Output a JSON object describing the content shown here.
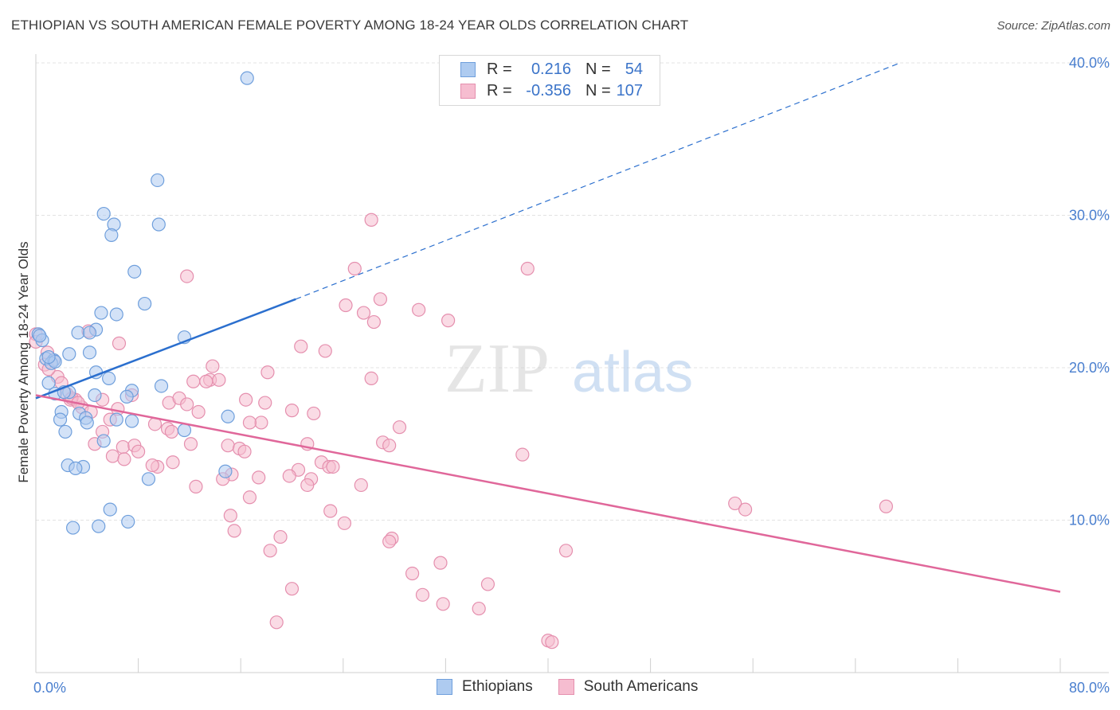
{
  "title": "ETHIOPIAN VS SOUTH AMERICAN FEMALE POVERTY AMONG 18-24 YEAR OLDS CORRELATION CHART",
  "source": "Source: ZipAtlas.com",
  "watermark": {
    "zip": "ZIP",
    "atlas": "atlas"
  },
  "legend_box": [
    {
      "r_label": "R =",
      "r_value": "0.216",
      "n_label": "N =",
      "n_value": "54"
    },
    {
      "r_label": "R =",
      "r_value": "-0.356",
      "n_label": "N =",
      "n_value": "107"
    }
  ],
  "bottom_legend": [
    "Ethiopians",
    "South Americans"
  ],
  "colors": {
    "blue_fill": "#aecbf0",
    "blue_stroke": "#6f9fdc",
    "blue_line": "#2b6fce",
    "pink_fill": "#f6bdd0",
    "pink_stroke": "#e58fae",
    "pink_line": "#e0679a",
    "axis_label": "#4a7fcf",
    "grid": "#e3e3e3"
  },
  "chart_data": {
    "type": "scatter",
    "title": "ETHIOPIAN VS SOUTH AMERICAN FEMALE POVERTY AMONG 18-24 YEAR OLDS CORRELATION CHART",
    "xlabel": "",
    "ylabel": "Female Poverty Among 18-24 Year Olds",
    "xlim": [
      0,
      80
    ],
    "ylim": [
      0,
      40
    ],
    "x_tick_labels": [
      "0.0%",
      "80.0%"
    ],
    "y_ticks": [
      10,
      20,
      30,
      40
    ],
    "y_tick_labels": [
      "10.0%",
      "20.0%",
      "30.0%",
      "40.0%"
    ],
    "grid": true,
    "legend": "top-center",
    "series": [
      {
        "name": "Ethiopians",
        "r": 0.216,
        "n": 54,
        "trend": {
          "x": [
            0,
            20.3
          ],
          "y": [
            18.0,
            24.5
          ],
          "dashed_to": [
            67.5,
            40.0
          ]
        },
        "points": [
          [
            16.5,
            39.0
          ],
          [
            9.5,
            32.3
          ],
          [
            5.3,
            30.1
          ],
          [
            6.1,
            29.4
          ],
          [
            9.6,
            29.4
          ],
          [
            5.9,
            28.7
          ],
          [
            7.7,
            26.3
          ],
          [
            8.5,
            24.2
          ],
          [
            5.1,
            23.6
          ],
          [
            6.3,
            23.5
          ],
          [
            4.7,
            22.5
          ],
          [
            3.3,
            22.3
          ],
          [
            4.2,
            22.3
          ],
          [
            11.6,
            22.0
          ],
          [
            0.2,
            22.2
          ],
          [
            0.5,
            21.8
          ],
          [
            4.2,
            21.0
          ],
          [
            2.6,
            20.9
          ],
          [
            0.8,
            20.6
          ],
          [
            1.4,
            20.5
          ],
          [
            1.2,
            20.3
          ],
          [
            1.5,
            20.4
          ],
          [
            4.7,
            19.7
          ],
          [
            5.7,
            19.3
          ],
          [
            1.0,
            19.0
          ],
          [
            9.8,
            18.8
          ],
          [
            7.5,
            18.5
          ],
          [
            2.6,
            18.4
          ],
          [
            1.5,
            18.3
          ],
          [
            4.6,
            18.2
          ],
          [
            7.1,
            18.1
          ],
          [
            2.0,
            17.1
          ],
          [
            3.4,
            17.0
          ],
          [
            3.9,
            16.7
          ],
          [
            1.9,
            16.6
          ],
          [
            6.3,
            16.6
          ],
          [
            7.5,
            16.5
          ],
          [
            4.0,
            16.4
          ],
          [
            15.0,
            16.8
          ],
          [
            11.6,
            15.9
          ],
          [
            2.3,
            15.8
          ],
          [
            5.3,
            15.2
          ],
          [
            2.5,
            13.6
          ],
          [
            3.7,
            13.5
          ],
          [
            3.1,
            13.4
          ],
          [
            14.8,
            13.2
          ],
          [
            8.8,
            12.7
          ],
          [
            5.8,
            10.7
          ],
          [
            7.2,
            9.9
          ],
          [
            2.9,
            9.5
          ],
          [
            4.9,
            9.6
          ],
          [
            0.3,
            22.1
          ],
          [
            1.0,
            20.7
          ],
          [
            2.2,
            18.4
          ]
        ]
      },
      {
        "name": "South Americans",
        "r": -0.356,
        "n": 107,
        "trend": {
          "x": [
            0,
            80
          ],
          "y": [
            18.2,
            5.3
          ]
        },
        "points": [
          [
            26.2,
            29.7
          ],
          [
            24.9,
            26.5
          ],
          [
            38.4,
            26.5
          ],
          [
            11.8,
            26.0
          ],
          [
            26.9,
            24.5
          ],
          [
            24.2,
            24.1
          ],
          [
            29.9,
            23.8
          ],
          [
            25.6,
            23.6
          ],
          [
            26.4,
            23.0
          ],
          [
            32.2,
            23.1
          ],
          [
            4.1,
            22.4
          ],
          [
            6.5,
            21.6
          ],
          [
            20.7,
            21.4
          ],
          [
            22.6,
            21.1
          ],
          [
            13.8,
            20.1
          ],
          [
            18.1,
            19.7
          ],
          [
            26.2,
            19.3
          ],
          [
            0.0,
            22.2
          ],
          [
            0.0,
            21.7
          ],
          [
            0.9,
            21.0
          ],
          [
            1.4,
            20.5
          ],
          [
            0.7,
            20.2
          ],
          [
            12.3,
            19.1
          ],
          [
            13.6,
            19.2
          ],
          [
            14.3,
            19.2
          ],
          [
            1.7,
            19.4
          ],
          [
            2.0,
            19.0
          ],
          [
            2.4,
            18.3
          ],
          [
            3.1,
            17.9
          ],
          [
            2.7,
            17.9
          ],
          [
            3.6,
            17.4
          ],
          [
            4.3,
            17.1
          ],
          [
            5.2,
            17.9
          ],
          [
            7.5,
            18.2
          ],
          [
            9.3,
            16.3
          ],
          [
            10.4,
            17.7
          ],
          [
            11.2,
            18.0
          ],
          [
            11.8,
            17.6
          ],
          [
            12.7,
            17.1
          ],
          [
            16.4,
            17.9
          ],
          [
            17.9,
            17.7
          ],
          [
            20.0,
            17.2
          ],
          [
            21.7,
            17.0
          ],
          [
            17.6,
            16.4
          ],
          [
            16.7,
            16.4
          ],
          [
            28.4,
            16.1
          ],
          [
            10.3,
            16.0
          ],
          [
            10.6,
            15.8
          ],
          [
            5.2,
            15.8
          ],
          [
            5.8,
            16.6
          ],
          [
            6.4,
            17.3
          ],
          [
            6.8,
            14.8
          ],
          [
            7.7,
            14.9
          ],
          [
            8.0,
            14.5
          ],
          [
            6.0,
            14.2
          ],
          [
            6.9,
            14.0
          ],
          [
            4.6,
            15.0
          ],
          [
            12.1,
            15.0
          ],
          [
            15.0,
            14.9
          ],
          [
            15.9,
            14.7
          ],
          [
            16.3,
            14.5
          ],
          [
            21.2,
            15.0
          ],
          [
            27.1,
            15.1
          ],
          [
            27.6,
            14.9
          ],
          [
            10.7,
            13.8
          ],
          [
            9.5,
            13.5
          ],
          [
            9.1,
            13.6
          ],
          [
            15.3,
            13.0
          ],
          [
            20.5,
            13.3
          ],
          [
            22.3,
            13.8
          ],
          [
            22.9,
            13.5
          ],
          [
            23.2,
            13.5
          ],
          [
            19.8,
            12.9
          ],
          [
            17.4,
            12.8
          ],
          [
            14.6,
            12.7
          ],
          [
            21.5,
            12.7
          ],
          [
            12.5,
            12.2
          ],
          [
            21.2,
            12.3
          ],
          [
            25.4,
            12.3
          ],
          [
            38.0,
            14.3
          ],
          [
            16.7,
            11.5
          ],
          [
            23.0,
            10.6
          ],
          [
            15.2,
            10.3
          ],
          [
            24.1,
            9.8
          ],
          [
            15.5,
            9.3
          ],
          [
            19.1,
            8.9
          ],
          [
            27.8,
            8.8
          ],
          [
            18.3,
            8.0
          ],
          [
            27.6,
            8.6
          ],
          [
            41.4,
            8.0
          ],
          [
            29.4,
            6.5
          ],
          [
            31.6,
            7.2
          ],
          [
            35.3,
            5.8
          ],
          [
            20.0,
            5.5
          ],
          [
            30.2,
            5.1
          ],
          [
            31.8,
            4.5
          ],
          [
            34.6,
            4.2
          ],
          [
            18.8,
            3.3
          ],
          [
            40.0,
            2.1
          ],
          [
            40.3,
            2.0
          ],
          [
            54.6,
            11.1
          ],
          [
            55.4,
            10.7
          ],
          [
            66.4,
            10.9
          ],
          [
            13.3,
            19.1
          ],
          [
            2.8,
            18.0
          ],
          [
            1.0,
            19.9
          ],
          [
            3.3,
            17.7
          ]
        ]
      }
    ]
  }
}
